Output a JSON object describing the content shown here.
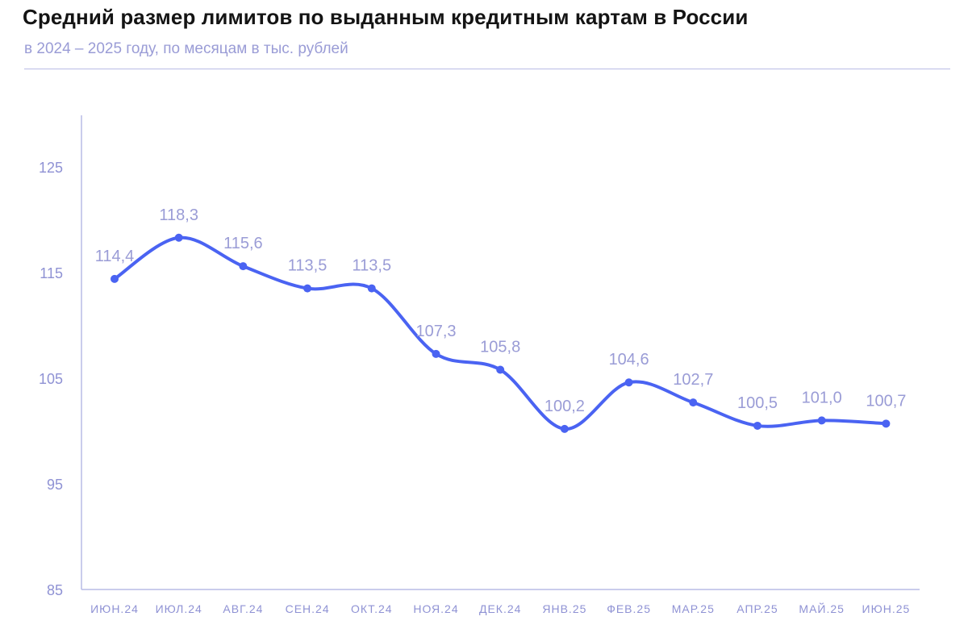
{
  "title": "Средний размер лимитов по выданным кредитным картам в России",
  "subtitle": "в 2024 – 2025 году, по месяцам в тыс. рублей",
  "colors": {
    "line": "#4a63f2",
    "axis": "#b9bbe6",
    "labels": "#9a9cd6",
    "title": "#141414"
  },
  "chart_data": {
    "type": "line",
    "title": "Средний размер лимитов по выданным кредитным картам в России",
    "subtitle": "в 2024 – 2025 году, по месяцам в тыс. рублей",
    "xlabel": "",
    "ylabel": "",
    "categories": [
      "ИЮН.24",
      "ИЮЛ.24",
      "АВГ.24",
      "СЕН.24",
      "ОКТ.24",
      "НОЯ.24",
      "ДЕК.24",
      "ЯНВ.25",
      "ФЕВ.25",
      "МАР.25",
      "АПР.25",
      "МАЙ.25",
      "ИЮН.25"
    ],
    "values": [
      114.4,
      118.3,
      115.6,
      113.5,
      113.5,
      107.3,
      105.8,
      100.2,
      104.6,
      102.7,
      100.5,
      101.0,
      100.7
    ],
    "value_labels": [
      "114,4",
      "118,3",
      "115,6",
      "113,5",
      "113,5",
      "107,3",
      "105,8",
      "100,2",
      "104,6",
      "102,7",
      "100,5",
      "101,0",
      "100,7"
    ],
    "yticks": [
      125,
      115,
      105,
      95,
      85
    ],
    "ylim": [
      85,
      130
    ],
    "grid": false,
    "legend": "none",
    "smooth": true
  }
}
